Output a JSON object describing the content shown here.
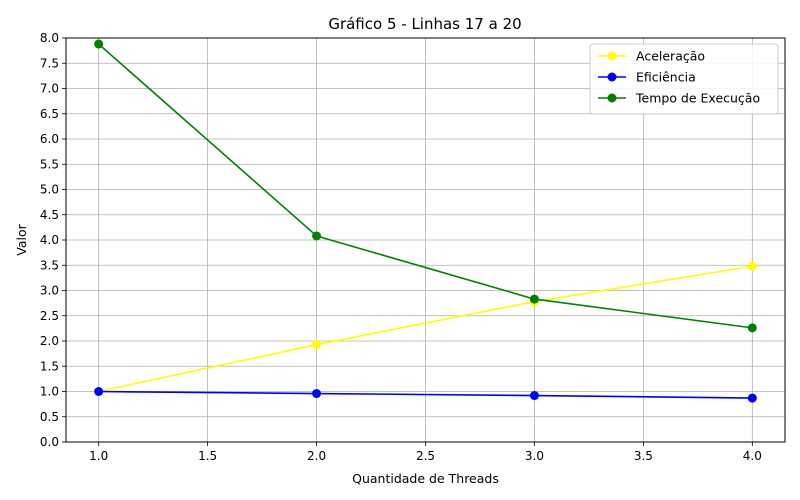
{
  "chart_data": {
    "type": "line",
    "title": "Gráfico 5 - Linhas 17 a 20",
    "xlabel": "Quantidade de Threads",
    "ylabel": "Valor",
    "x": [
      1.0,
      2.0,
      3.0,
      4.0
    ],
    "xlim": [
      0.85,
      4.15
    ],
    "ylim": [
      0.0,
      8.0
    ],
    "xticks": [
      1.0,
      1.5,
      2.0,
      2.5,
      3.0,
      3.5,
      4.0
    ],
    "xtick_labels": [
      "1.0",
      "1.5",
      "2.0",
      "2.5",
      "3.0",
      "3.5",
      "4.0"
    ],
    "yticks": [
      0.0,
      0.5,
      1.0,
      1.5,
      2.0,
      2.5,
      3.0,
      3.5,
      4.0,
      4.5,
      5.0,
      5.5,
      6.0,
      6.5,
      7.0,
      7.5,
      8.0
    ],
    "ytick_labels": [
      "0.0",
      "0.5",
      "1.0",
      "1.5",
      "2.0",
      "2.5",
      "3.0",
      "3.5",
      "4.0",
      "4.5",
      "5.0",
      "5.5",
      "6.0",
      "6.5",
      "7.0",
      "7.5",
      "8.0"
    ],
    "grid": true,
    "legend_position": "top-right",
    "series": [
      {
        "name": "Aceleração",
        "color": "#ffff00",
        "values": [
          1.0,
          1.93,
          2.78,
          3.48
        ]
      },
      {
        "name": "Eficiência",
        "color": "#0000ff",
        "values": [
          1.0,
          0.96,
          0.92,
          0.87
        ]
      },
      {
        "name": "Tempo de Execução",
        "color": "#008000",
        "values": [
          7.88,
          4.08,
          2.83,
          2.26
        ]
      }
    ]
  }
}
